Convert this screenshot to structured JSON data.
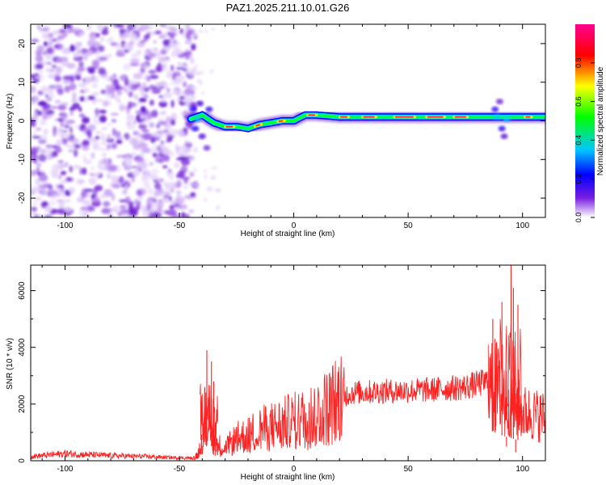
{
  "figure": {
    "title": "PAZ1.2025.211.10.01.G26"
  },
  "chart_data": [
    {
      "type": "heatmap",
      "title": "PAZ1.2025.211.10.01.G26",
      "xlabel": "Height of straight line (km)",
      "ylabel": "Frequency (Hz)",
      "xlim": [
        -115,
        110
      ],
      "ylim": [
        -25,
        25
      ],
      "x_ticks": [
        -100,
        -50,
        0,
        50,
        100
      ],
      "y_ticks": [
        -20,
        -10,
        0,
        10,
        20
      ],
      "colorbar": {
        "label": "Normalized spectral amplitude",
        "range": [
          0,
          1
        ],
        "ticks": [
          "0.0",
          "0.2",
          "0.4",
          "0.6",
          "0.8"
        ],
        "colors": [
          "#ffffff",
          "#6a00d8",
          "#0000ff",
          "#00e6ff",
          "#00ff00",
          "#ffff00",
          "#ff0000",
          "#ff0090"
        ]
      },
      "noise_region_km": [
        -115,
        -45
      ],
      "ridge_peak_frequency_hz": [
        {
          "x": -45,
          "y": 0.5
        },
        {
          "x": -40,
          "y": 1.5
        },
        {
          "x": -35,
          "y": -0.5
        },
        {
          "x": -30,
          "y": -1.5
        },
        {
          "x": -25,
          "y": -1.5
        },
        {
          "x": -20,
          "y": -2.0
        },
        {
          "x": -15,
          "y": -1.0
        },
        {
          "x": -10,
          "y": -0.5
        },
        {
          "x": -5,
          "y": 0
        },
        {
          "x": 0,
          "y": 0
        },
        {
          "x": 5,
          "y": 1.5
        },
        {
          "x": 10,
          "y": 1.5
        },
        {
          "x": 20,
          "y": 1.0
        },
        {
          "x": 30,
          "y": 1.0
        },
        {
          "x": 40,
          "y": 1.0
        },
        {
          "x": 50,
          "y": 1.0
        },
        {
          "x": 60,
          "y": 1.0
        },
        {
          "x": 70,
          "y": 1.0
        },
        {
          "x": 80,
          "y": 1.0
        },
        {
          "x": 90,
          "y": 1.0
        },
        {
          "x": 100,
          "y": 1.0
        },
        {
          "x": 110,
          "y": 1.0
        }
      ]
    },
    {
      "type": "line",
      "xlabel": "Height of straight line (km)",
      "ylabel": "SNR (10 * v/v)",
      "xlim": [
        -115,
        110
      ],
      "ylim": [
        0,
        6900
      ],
      "x_ticks": [
        -100,
        -50,
        0,
        50,
        100
      ],
      "y_ticks": [
        0,
        2000,
        4000,
        6000
      ],
      "line_color": "#ff2020",
      "envelope": [
        {
          "x": -115,
          "y": 150
        },
        {
          "x": -100,
          "y": 250
        },
        {
          "x": -80,
          "y": 180
        },
        {
          "x": -65,
          "y": 150
        },
        {
          "x": -50,
          "y": 100
        },
        {
          "x": -44,
          "y": 100
        },
        {
          "x": -42,
          "y": 200
        },
        {
          "x": -40,
          "y": 900
        },
        {
          "x": -37,
          "y": 1600
        },
        {
          "x": -34,
          "y": 600
        },
        {
          "x": -30,
          "y": 450
        },
        {
          "x": -25,
          "y": 800
        },
        {
          "x": -20,
          "y": 900
        },
        {
          "x": -15,
          "y": 1100
        },
        {
          "x": -10,
          "y": 1200
        },
        {
          "x": -5,
          "y": 1300
        },
        {
          "x": 0,
          "y": 1400
        },
        {
          "x": 5,
          "y": 1500
        },
        {
          "x": 10,
          "y": 1700
        },
        {
          "x": 15,
          "y": 1900
        },
        {
          "x": 20,
          "y": 2200
        },
        {
          "x": 25,
          "y": 2400
        },
        {
          "x": 40,
          "y": 2450
        },
        {
          "x": 60,
          "y": 2500
        },
        {
          "x": 75,
          "y": 2600
        },
        {
          "x": 85,
          "y": 2800
        },
        {
          "x": 90,
          "y": 2300
        },
        {
          "x": 95,
          "y": 2000
        },
        {
          "x": 100,
          "y": 1700
        },
        {
          "x": 110,
          "y": 1550
        }
      ],
      "spikes": [
        {
          "x": -38,
          "y": 3900
        },
        {
          "x": -36,
          "y": 3500
        },
        {
          "x": -35,
          "y": 2800
        },
        {
          "x": 87,
          "y": 5000
        },
        {
          "x": 88,
          "y": 4300
        },
        {
          "x": 91,
          "y": 5600
        },
        {
          "x": 95,
          "y": 6900
        },
        {
          "x": 96,
          "y": 6100
        },
        {
          "x": 98,
          "y": 5500
        },
        {
          "x": 97,
          "y": 300
        },
        {
          "x": 93,
          "y": 500
        }
      ]
    }
  ]
}
